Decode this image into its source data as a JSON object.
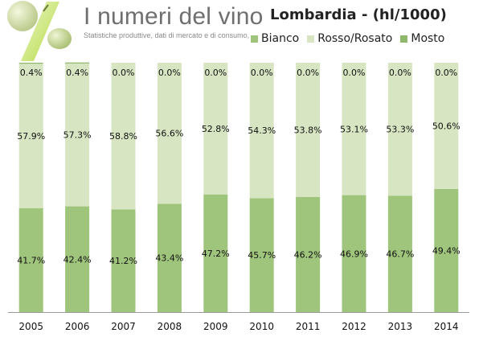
{
  "header": {
    "logo_title": "I numeri del vino",
    "logo_subtitle": "Statistiche produttive, dati di mercato e di consumo, ..."
  },
  "chart_data": {
    "type": "bar",
    "stacked": "percent",
    "title": "Lombardia - (hl/1000)",
    "categories": [
      "2005",
      "2006",
      "2007",
      "2008",
      "2009",
      "2010",
      "2011",
      "2012",
      "2013",
      "2014"
    ],
    "series": [
      {
        "name": "Bianco",
        "color": "#9fc47b",
        "values": [
          41.7,
          42.4,
          41.2,
          43.4,
          47.2,
          45.7,
          46.2,
          46.9,
          46.7,
          49.4
        ],
        "labels": [
          "41.7%",
          "42.4%",
          "41.2%",
          "43.4%",
          "47.2%",
          "45.7%",
          "46.2%",
          "46.9%",
          "46.7%",
          "49.4%"
        ]
      },
      {
        "name": "Rosso/Rosato",
        "color": "#d7e5c2",
        "values": [
          57.9,
          57.3,
          58.8,
          56.6,
          52.8,
          54.3,
          53.8,
          53.1,
          53.3,
          50.6
        ],
        "labels": [
          "57.9%",
          "57.3%",
          "58.8%",
          "56.6%",
          "52.8%",
          "54.3%",
          "53.8%",
          "53.1%",
          "53.3%",
          "50.6%"
        ]
      },
      {
        "name": "Mosto",
        "color": "#8fb86a",
        "values": [
          0.4,
          0.4,
          0.0,
          0.0,
          0.0,
          0.0,
          0.0,
          0.0,
          0.0,
          0.0
        ],
        "labels": [
          "0.4%",
          "0.4%",
          "0.0%",
          "0.0%",
          "0.0%",
          "0.0%",
          "0.0%",
          "0.0%",
          "0.0%",
          "0.0%"
        ]
      }
    ],
    "ylim": [
      0,
      100
    ],
    "legend": "top",
    "grid": false
  }
}
